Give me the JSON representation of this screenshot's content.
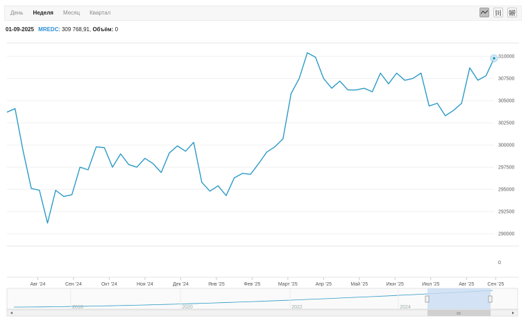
{
  "toolbar": {
    "tabs": [
      "День",
      "Неделя",
      "Месяц",
      "Квартал"
    ],
    "active_tab": "Неделя",
    "chart_type_icons": [
      "line-chart-icon",
      "ohlc-chart-icon",
      "candlestick-chart-icon"
    ],
    "active_icon": "line-chart-icon"
  },
  "info": {
    "date": "01-09-2025",
    "ticker": "MREDC",
    "value_text": ": 309 768,91,",
    "volume_label": "Объём:",
    "volume_value": "0"
  },
  "colors": {
    "line": "#2b9ac6",
    "navigator_fill": "#c9dcf2",
    "ticker": "#2a8fd6"
  },
  "chart_data": {
    "type": "line",
    "title": "",
    "xlabel": "",
    "ylabel": "",
    "ylim": [
      289000,
      311500
    ],
    "y_ticks": [
      310000,
      307500,
      305000,
      302500,
      300000,
      297500,
      295000,
      292500,
      290000
    ],
    "volume_ticks": [
      0
    ],
    "x_tick_labels": [
      "Авг '24",
      "Сен '24",
      "Окт '24",
      "Ноя '24",
      "Дек '24",
      "Янв '25",
      "Фев '25",
      "Март '25",
      "Апр '25",
      "Май '25",
      "Июн '25",
      "Июл '25",
      "Авг '25",
      "Сен '25"
    ],
    "grid": true,
    "navigator_years": [
      "2018",
      "2020",
      "2022",
      "2024"
    ],
    "series": [
      {
        "values": [
          303700,
          304100,
          299300,
          295100,
          294900,
          291200,
          294900,
          294200,
          294400,
          297500,
          297200,
          299800,
          299700,
          297500,
          299000,
          297800,
          297500,
          298500,
          297900,
          296900,
          299100,
          299900,
          299300,
          300300,
          295800,
          294800,
          295400,
          294300,
          296300,
          296800,
          296700,
          297900,
          299200,
          299800,
          300700,
          305800,
          307500,
          310400,
          309900,
          307500,
          306400,
          307200,
          306200,
          306200,
          306400,
          306000,
          308100,
          306900,
          308100,
          307300,
          307500,
          308100,
          304400,
          304700,
          303300,
          303900,
          304700,
          308700,
          307300,
          307800,
          309768.91
        ]
      }
    ]
  }
}
